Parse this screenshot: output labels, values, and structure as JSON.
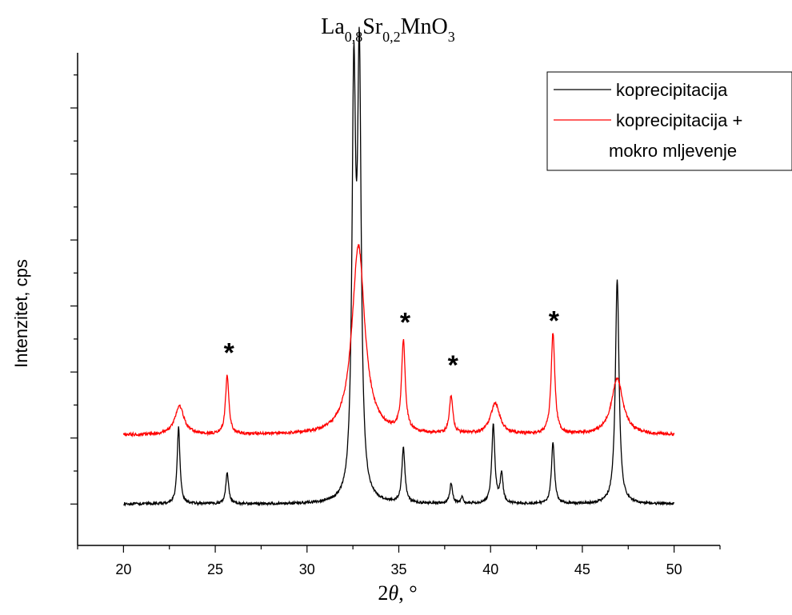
{
  "chart_data": {
    "type": "line",
    "title": {
      "parts": [
        {
          "text": "La",
          "sub": false
        },
        {
          "text": "0,8",
          "sub": true
        },
        {
          "text": "Sr",
          "sub": false
        },
        {
          "text": "0,2",
          "sub": true
        },
        {
          "text": "MnO",
          "sub": false
        },
        {
          "text": "3",
          "sub": true
        }
      ]
    },
    "xlabel": {
      "italic_prefix": "2",
      "italic": "θ",
      "suffix": ", °"
    },
    "ylabel": "Intenzitet, cps",
    "xlim": [
      17.5,
      52.5
    ],
    "ylim": [
      0,
      100
    ],
    "x_ticks": [
      20,
      25,
      30,
      35,
      40,
      45,
      50
    ],
    "y_tick_labels_shown": false,
    "grid": false,
    "legend_position": "top-right",
    "series": [
      {
        "name": "koprecipitacija",
        "legend_lines": [
          "koprecipitacija"
        ],
        "color": "#000000",
        "baseline": 8.4,
        "x_range": [
          20,
          50
        ],
        "noise": 0.25,
        "peaks": [
          {
            "center": 23.0,
            "height": 15.6,
            "width": 0.09
          },
          {
            "center": 25.65,
            "height": 6.5,
            "width": 0.09
          },
          {
            "center": 32.55,
            "height": 81.8,
            "width": 0.12
          },
          {
            "center": 32.85,
            "height": 85.6,
            "width": 0.12
          },
          {
            "center": 35.25,
            "height": 11.2,
            "width": 0.1
          },
          {
            "center": 37.85,
            "height": 4.1,
            "width": 0.09
          },
          {
            "center": 38.45,
            "height": 1.2,
            "width": 0.07
          },
          {
            "center": 40.15,
            "height": 16.0,
            "width": 0.1
          },
          {
            "center": 40.6,
            "height": 6.0,
            "width": 0.09
          },
          {
            "center": 43.4,
            "height": 12.3,
            "width": 0.1
          },
          {
            "center": 46.9,
            "height": 45.6,
            "width": 0.12
          }
        ]
      },
      {
        "name": "koprecipitacija + mokro mljevenje",
        "legend_lines": [
          "koprecipitacija +",
          "mokro mljevenje"
        ],
        "color": "#ff0000",
        "baseline": 22.4,
        "x_range": [
          20,
          50
        ],
        "noise": 0.3,
        "peaks": [
          {
            "center": 23.05,
            "height": 5.8,
            "width": 0.3
          },
          {
            "center": 25.65,
            "height": 12.0,
            "width": 0.11
          },
          {
            "center": 32.8,
            "height": 38.4,
            "width": 0.42
          },
          {
            "center": 35.25,
            "height": 18.2,
            "width": 0.12
          },
          {
            "center": 37.85,
            "height": 7.8,
            "width": 0.11
          },
          {
            "center": 40.25,
            "height": 6.3,
            "width": 0.3
          },
          {
            "center": 43.4,
            "height": 20.6,
            "width": 0.12
          },
          {
            "center": 46.9,
            "height": 11.4,
            "width": 0.38
          }
        ]
      }
    ],
    "annotations": [
      {
        "text": "*",
        "x": 25.75,
        "y": 40.5
      },
      {
        "text": "*",
        "x": 35.35,
        "y": 46.7
      },
      {
        "text": "*",
        "x": 37.95,
        "y": 38.0
      },
      {
        "text": "*",
        "x": 43.45,
        "y": 47.0
      }
    ]
  }
}
